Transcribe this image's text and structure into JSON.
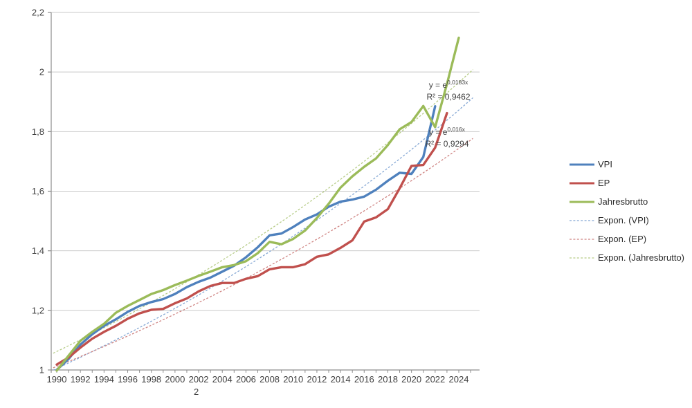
{
  "chart_data": {
    "type": "line",
    "title": "",
    "xlabel": "",
    "ylabel": "",
    "ylim": [
      1.0,
      2.2
    ],
    "xlim": [
      1990,
      2025.6
    ],
    "grid": "horizontal",
    "start_year": 1990,
    "series": [
      {
        "name": "VPI",
        "color": "#4F81BD",
        "start_year": 1990,
        "values": [
          1.0,
          1.037,
          1.085,
          1.12,
          1.148,
          1.17,
          1.195,
          1.215,
          1.228,
          1.238,
          1.255,
          1.278,
          1.296,
          1.31,
          1.33,
          1.35,
          1.378,
          1.412,
          1.452,
          1.458,
          1.48,
          1.505,
          1.522,
          1.548,
          1.565,
          1.572,
          1.582,
          1.605,
          1.635,
          1.662,
          1.658,
          1.715,
          1.885
        ]
      },
      {
        "name": "EP",
        "color": "#C0504D",
        "start_year": 1990,
        "values": [
          1.018,
          1.042,
          1.075,
          1.105,
          1.128,
          1.148,
          1.172,
          1.19,
          1.202,
          1.205,
          1.224,
          1.24,
          1.264,
          1.282,
          1.292,
          1.292,
          1.306,
          1.315,
          1.338,
          1.345,
          1.345,
          1.355,
          1.38,
          1.388,
          1.41,
          1.435,
          1.498,
          1.512,
          1.54,
          1.61,
          1.685,
          1.688,
          1.746,
          1.862
        ]
      },
      {
        "name": "Jahresbrutto",
        "color": "#9BBB59",
        "start_year": 1990,
        "values": [
          0.998,
          1.048,
          1.098,
          1.128,
          1.155,
          1.192,
          1.215,
          1.235,
          1.255,
          1.268,
          1.285,
          1.3,
          1.316,
          1.33,
          1.345,
          1.352,
          1.365,
          1.392,
          1.43,
          1.422,
          1.44,
          1.468,
          1.51,
          1.558,
          1.612,
          1.65,
          1.682,
          1.71,
          1.755,
          1.808,
          1.832,
          1.886,
          1.815,
          1.96,
          2.115
        ]
      }
    ],
    "trendlines": [
      {
        "name": "Expon. (VPI)",
        "color": "#84A7D4",
        "a": 1.005,
        "b": 0.0183
      },
      {
        "name": "Expon. (EP)",
        "color": "#CF8482",
        "a": 1.012,
        "b": 0.016
      },
      {
        "name": "Expon. (Jahresbrutto)",
        "color": "#B6CC87",
        "a": 1.062,
        "b": 0.0181
      }
    ],
    "axes": {
      "y_ticks": [
        {
          "value": 1.0,
          "label": "1"
        },
        {
          "value": 1.2,
          "label": "1,2"
        },
        {
          "value": 1.4,
          "label": "1,4"
        },
        {
          "value": 1.6,
          "label": "1,6"
        },
        {
          "value": 1.8,
          "label": "1,8"
        },
        {
          "value": 2.0,
          "label": "2"
        },
        {
          "value": 2.2,
          "label": "2,2"
        }
      ],
      "x_tick_labels": [
        "1990",
        "1992",
        "1994",
        "1996",
        "1998",
        "2000",
        "2002",
        "2004",
        "2006",
        "2008",
        "2010",
        "2012",
        "2014",
        "2016",
        "2018",
        "2020",
        "2022",
        "2024"
      ],
      "x_minor_tick_years": [
        1990,
        2025
      ],
      "x_note": "2"
    }
  },
  "annotations": [
    {
      "prefix": "y = e",
      "exponent": "0,0183x",
      "r2": "R² = 0,9462"
    },
    {
      "prefix": "y = e",
      "exponent": "0,016x",
      "r2": "R² = 0,9294"
    }
  ],
  "legend": {
    "items": [
      {
        "label": "VPI",
        "style": "solid",
        "color": "#4F81BD"
      },
      {
        "label": "EP",
        "style": "solid",
        "color": "#C0504D"
      },
      {
        "label": "Jahresbrutto",
        "style": "solid",
        "color": "#9BBB59"
      },
      {
        "label": "Expon. (VPI)",
        "style": "dashed",
        "color": "#84A7D4"
      },
      {
        "label": "Expon. (EP)",
        "style": "dashed",
        "color": "#CF8482"
      },
      {
        "label": "Expon. (Jahresbrutto)",
        "style": "dashed",
        "color": "#B6CC87"
      }
    ]
  },
  "colors": {
    "gridline": "#c9c9c9",
    "axis": "#8c8c8c",
    "tick_label": "#3f3f3f",
    "background": "#ffffff"
  }
}
